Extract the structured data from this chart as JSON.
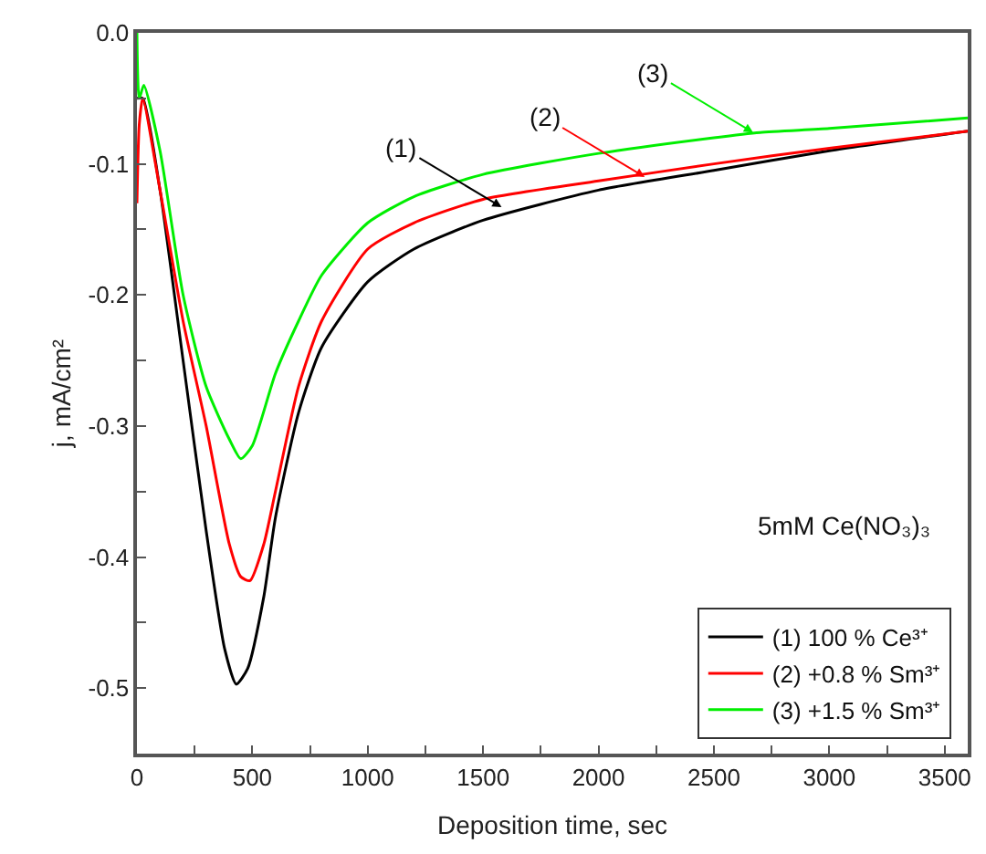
{
  "chart_data": {
    "type": "line",
    "xlabel": "Deposition time, sec",
    "ylabel": "j, mA/cm²",
    "xlim": [
      0,
      3600
    ],
    "ylim": [
      -0.55,
      0
    ],
    "xticks": [
      0,
      {
        "value": 250,
        "label": null
      },
      500,
      {
        "value": 750,
        "label": null
      },
      1000,
      {
        "value": 1250,
        "label": null
      },
      1500,
      {
        "value": 1750,
        "label": null
      },
      2000,
      {
        "value": 2250,
        "label": null
      },
      2500,
      {
        "value": 2750,
        "label": null
      },
      3000,
      {
        "value": 3250,
        "label": null
      },
      3500
    ],
    "yticks": [
      {
        "value": 0,
        "label": "0.0"
      },
      {
        "value": -0.05,
        "label": null
      },
      -0.1,
      {
        "value": -0.15,
        "label": null
      },
      -0.2,
      {
        "value": -0.25,
        "label": null
      },
      -0.3,
      {
        "value": -0.35,
        "label": null
      },
      -0.4,
      {
        "value": -0.45,
        "label": null
      },
      -0.5
    ],
    "legend": "bottom right",
    "marker": "none",
    "line_style": "solid",
    "series": [
      {
        "name": "(1) 100 % Ce³⁺",
        "color": "#000000",
        "x": [
          0,
          25,
          100,
          200,
          300,
          380,
          430,
          480,
          550,
          600,
          700,
          800,
          1000,
          1200,
          1500,
          2000,
          2500,
          3000,
          3600
        ],
        "values": [
          -0.05,
          -0.05,
          -0.12,
          -0.25,
          -0.38,
          -0.47,
          -0.497,
          -0.485,
          -0.43,
          -0.37,
          -0.29,
          -0.24,
          -0.19,
          -0.165,
          -0.143,
          -0.12,
          -0.105,
          -0.09,
          -0.075
        ]
      },
      {
        "name": "(2) +0.8 % Sm³⁺",
        "color": "#ff0000",
        "x": [
          0,
          10,
          25,
          100,
          200,
          300,
          400,
          450,
          490,
          550,
          600,
          700,
          800,
          1000,
          1200,
          1500,
          2000,
          2500,
          3000,
          3600
        ],
        "values": [
          -0.13,
          -0.07,
          -0.05,
          -0.12,
          -0.22,
          -0.3,
          -0.39,
          -0.415,
          -0.418,
          -0.39,
          -0.35,
          -0.27,
          -0.22,
          -0.165,
          -0.145,
          -0.127,
          -0.113,
          -0.1,
          -0.088,
          -0.075
        ]
      },
      {
        "name": "(3) +1.5 % Sm³⁺",
        "color": "#00ee00",
        "x": [
          0,
          10,
          30,
          100,
          200,
          300,
          400,
          450,
          500,
          600,
          700,
          800,
          1000,
          1200,
          1500,
          2000,
          2500,
          2700,
          3000,
          3600
        ],
        "values": [
          0,
          -0.05,
          -0.04,
          -0.09,
          -0.2,
          -0.27,
          -0.31,
          -0.325,
          -0.315,
          -0.26,
          -0.22,
          -0.185,
          -0.145,
          -0.125,
          -0.108,
          -0.092,
          -0.08,
          -0.076,
          -0.073,
          -0.065
        ]
      }
    ],
    "annotations": [
      {
        "text": "(1)",
        "x": 1580,
        "y": -0.133
      },
      {
        "text": "(2)",
        "x": 2200,
        "y": -0.11
      },
      {
        "text": "(3)",
        "x": 2670,
        "y": -0.076
      },
      "5mM Ce(NO₃)₃"
    ]
  }
}
